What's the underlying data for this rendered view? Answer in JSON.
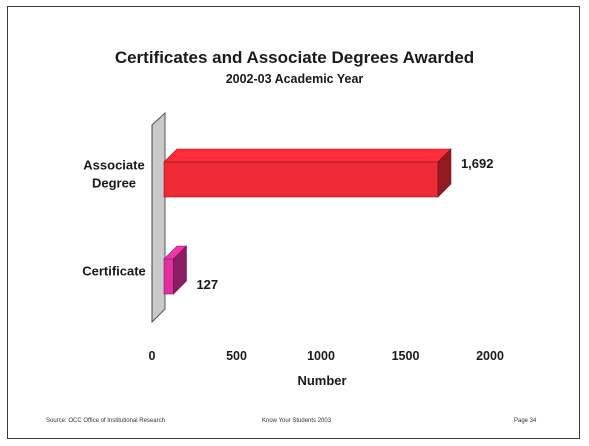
{
  "chart_data": {
    "type": "bar",
    "orientation": "horizontal",
    "title": "Certificates and Associate Degrees Awarded",
    "subtitle": "2002-03 Academic Year",
    "categories": [
      "Associate Degree",
      "Certificate"
    ],
    "category_lines": [
      [
        "Associate",
        "Degree"
      ],
      [
        "Certificate"
      ]
    ],
    "values": [
      1692,
      127
    ],
    "value_labels": [
      "1,692",
      "127"
    ],
    "xlabel": "Number",
    "ylabel": "",
    "xlim": [
      0,
      2000
    ],
    "xticks": [
      0,
      500,
      1000,
      1500,
      2000
    ],
    "grid": false,
    "legend": "none",
    "bar_colors": [
      "#ee2a36",
      "#e0309f"
    ]
  },
  "footer": {
    "source": "Source: OCC Office of Institutional Research",
    "center": "Know Your Students 2003",
    "page": "Page 34"
  }
}
